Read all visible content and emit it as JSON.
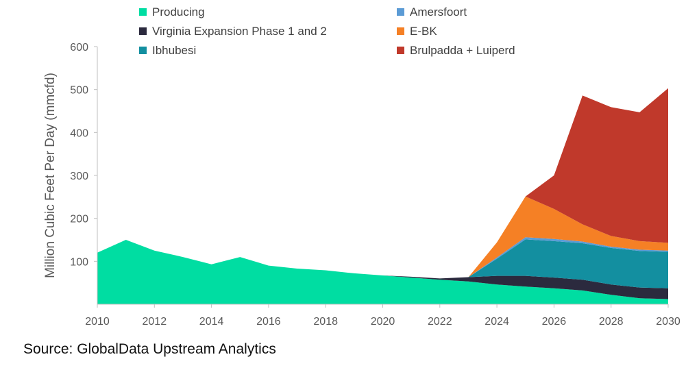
{
  "chart_data": {
    "type": "area",
    "stacked": true,
    "title": "",
    "xlabel": "",
    "ylabel": "Million Cubic Feet Per Day (mmcfd)",
    "x": [
      2010,
      2011,
      2012,
      2013,
      2014,
      2015,
      2016,
      2017,
      2018,
      2019,
      2020,
      2021,
      2022,
      2023,
      2024,
      2025,
      2026,
      2027,
      2028,
      2029,
      2030
    ],
    "xticks": [
      "2010",
      "2012",
      "2014",
      "2016",
      "2018",
      "2020",
      "2022",
      "2024",
      "2026",
      "2028",
      "2030"
    ],
    "yticks": [
      "100",
      "200",
      "300",
      "400",
      "500",
      "600"
    ],
    "ylim": [
      0,
      600
    ],
    "xlim": [
      2010,
      2030
    ],
    "legend_position": "top",
    "series": [
      {
        "name": "Producing",
        "color": "#00DDA2",
        "values": [
          120,
          150,
          125,
          110,
          93,
          110,
          90,
          83,
          79,
          72,
          67,
          62,
          57,
          53,
          46,
          41,
          37,
          32,
          22,
          14,
          12
        ]
      },
      {
        "name": "Virginia Expansion Phase 1 and 2",
        "color": "#2B2A3E",
        "values": [
          0,
          0,
          0,
          0,
          0,
          0,
          0,
          0,
          0,
          0,
          0,
          2,
          3,
          10,
          20,
          25,
          25,
          25,
          24,
          25,
          25
        ]
      },
      {
        "name": "Ibhubesi",
        "color": "#138FA0",
        "values": [
          0,
          0,
          0,
          0,
          0,
          0,
          0,
          0,
          0,
          0,
          0,
          0,
          0,
          0,
          40,
          85,
          85,
          85,
          85,
          85,
          85
        ]
      },
      {
        "name": "Amersfoort",
        "color": "#5B9BD5",
        "values": [
          0,
          0,
          0,
          0,
          0,
          0,
          0,
          0,
          0,
          0,
          0,
          0,
          0,
          0,
          3,
          5,
          5,
          4,
          3,
          3,
          3
        ]
      },
      {
        "name": "E-BK",
        "color": "#F58025",
        "values": [
          0,
          0,
          0,
          0,
          0,
          0,
          0,
          0,
          0,
          0,
          0,
          0,
          0,
          0,
          35,
          95,
          70,
          40,
          25,
          20,
          18
        ]
      },
      {
        "name": "Brulpadda + Luiperd",
        "color": "#C0392B",
        "values": [
          0,
          0,
          0,
          0,
          0,
          0,
          0,
          0,
          0,
          0,
          0,
          0,
          0,
          0,
          0,
          0,
          78,
          300,
          300,
          300,
          360
        ]
      }
    ]
  },
  "source_text": "Source: GlobalData Upstream Analytics"
}
